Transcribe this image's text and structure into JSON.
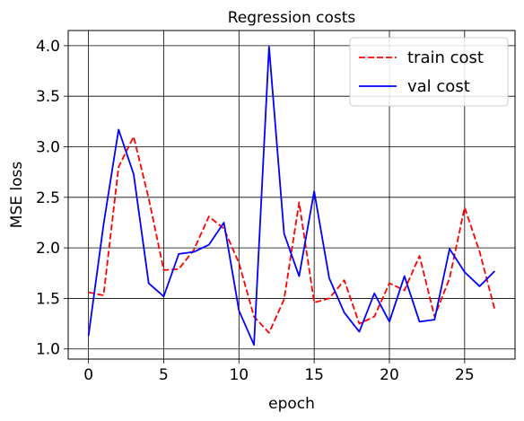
{
  "chart_data": {
    "type": "line",
    "title": "Regression costs",
    "xlabel": "epoch",
    "ylabel": "MSE loss",
    "xlim": [
      -1.35,
      28.35
    ],
    "ylim": [
      0.9,
      4.15
    ],
    "xticks": [
      0,
      5,
      10,
      15,
      20,
      25
    ],
    "xtick_labels": [
      "0",
      "5",
      "10",
      "15",
      "20",
      "25"
    ],
    "yticks": [
      1.0,
      1.5,
      2.0,
      2.5,
      3.0,
      3.5,
      4.0
    ],
    "ytick_labels": [
      "1.0",
      "1.5",
      "2.0",
      "2.5",
      "3.0",
      "3.5",
      "4.0"
    ],
    "grid": true,
    "legend_position": "top-right",
    "x": [
      0,
      1,
      2,
      3,
      4,
      5,
      6,
      7,
      8,
      9,
      10,
      11,
      12,
      13,
      14,
      15,
      16,
      17,
      18,
      19,
      20,
      21,
      22,
      23,
      24,
      25,
      26,
      27
    ],
    "series": [
      {
        "name": "train cost",
        "color": "#ff0000",
        "style": "dashed",
        "values": [
          1.56,
          1.53,
          2.8,
          3.1,
          2.49,
          1.78,
          1.79,
          1.98,
          2.31,
          2.19,
          1.85,
          1.32,
          1.16,
          1.49,
          2.45,
          1.46,
          1.5,
          1.68,
          1.25,
          1.32,
          1.65,
          1.58,
          1.92,
          1.32,
          1.7,
          2.4,
          1.96,
          1.39
        ]
      },
      {
        "name": "val cost",
        "color": "#0000ff",
        "style": "solid",
        "values": [
          1.13,
          2.23,
          3.17,
          2.73,
          1.65,
          1.52,
          1.94,
          1.96,
          2.03,
          2.25,
          1.38,
          1.04,
          3.99,
          2.14,
          1.72,
          2.56,
          1.7,
          1.36,
          1.17,
          1.55,
          1.27,
          1.72,
          1.27,
          1.29,
          1.99,
          1.76,
          1.62,
          1.77
        ]
      }
    ]
  }
}
